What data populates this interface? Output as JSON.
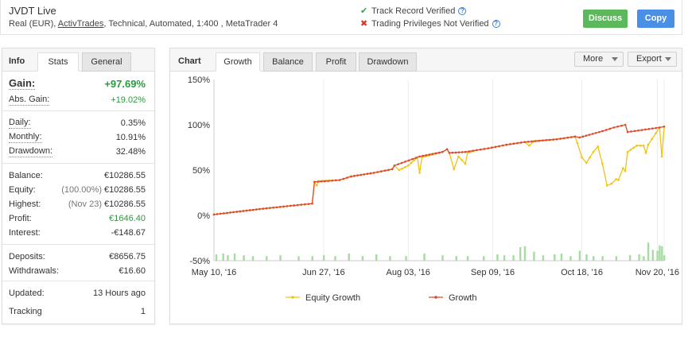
{
  "header": {
    "account_name": "JVDT Live",
    "account_prefix": "Real (EUR), ",
    "broker": "ActivTrades",
    "account_suffix": ", Technical, Automated, 1:400 , MetaTrader 4",
    "track_record": "Track Record Verified",
    "trading_privileges": "Trading Privileges Not Verified",
    "discuss_label": "Discuss",
    "copy_label": "Copy",
    "check_icon": "check-icon",
    "cross_icon": "cross-icon",
    "help_glyph": "?"
  },
  "left_tabs": {
    "info": "Info",
    "stats": "Stats",
    "general": "General"
  },
  "stats": {
    "gain": {
      "label": "Gain:",
      "value": "+97.69%"
    },
    "abs_gain": {
      "label": "Abs. Gain:",
      "value": "+19.02%"
    },
    "daily": {
      "label": "Daily:",
      "value": "0.35%"
    },
    "monthly": {
      "label": "Monthly:",
      "value": "10.91%"
    },
    "drawdown": {
      "label": "Drawdown:",
      "value": "32.48%"
    },
    "balance": {
      "label": "Balance:",
      "value": "€10286.55"
    },
    "equity": {
      "label": "Equity:",
      "prefix": "(100.00%)",
      "value": "€10286.55"
    },
    "highest": {
      "label": "Highest:",
      "prefix": "(Nov 23)",
      "value": "€10286.55"
    },
    "profit": {
      "label": "Profit:",
      "value": "€1646.40"
    },
    "interest": {
      "label": "Interest:",
      "value": "-€148.67"
    },
    "deposits": {
      "label": "Deposits:",
      "value": "€8656.75"
    },
    "withdrawals": {
      "label": "Withdrawals:",
      "value": "€16.60"
    },
    "updated": {
      "label": "Updated:",
      "value": "13 Hours ago"
    },
    "tracking": {
      "label": "Tracking",
      "value": "1"
    }
  },
  "chart_tabs": {
    "label": "Chart",
    "growth": "Growth",
    "balance": "Balance",
    "profit": "Profit",
    "drawdown": "Drawdown",
    "more": "More",
    "export": "Export"
  },
  "colors": {
    "growth": "#e04a2c",
    "equity": "#f2c313",
    "volume": "#a6dca0",
    "grid": "#ececec",
    "green_text": "#2a9a3c"
  },
  "chart_data": {
    "type": "line",
    "title": "",
    "xlabel": "",
    "ylabel": "",
    "ylim": [
      -50,
      150
    ],
    "y_ticks": [
      "150%",
      "100%",
      "50%",
      "0%",
      "-50%"
    ],
    "y_tick_values": [
      150,
      100,
      50,
      0,
      -50
    ],
    "x_ticks": [
      "May 10, '16",
      "Jun 27, '16",
      "Aug 03, '16",
      "Sep 09, '16",
      "Oct 18, '16",
      "Nov 20, '16"
    ],
    "x_tick_index": [
      0,
      48,
      85,
      122,
      161,
      194
    ],
    "x_count": 197,
    "legend": [
      "Equity Growth",
      "Growth"
    ],
    "legend_position": "bottom",
    "grid": "vertical",
    "series": [
      {
        "name": "Growth",
        "points": [
          [
            0,
            1
          ],
          [
            10,
            4
          ],
          [
            20,
            7
          ],
          [
            35,
            11
          ],
          [
            43,
            13
          ],
          [
            44,
            37
          ],
          [
            50,
            38
          ],
          [
            55,
            39
          ],
          [
            60,
            43
          ],
          [
            70,
            47
          ],
          [
            78,
            51
          ],
          [
            79,
            55
          ],
          [
            90,
            65
          ],
          [
            100,
            70
          ],
          [
            102,
            73
          ],
          [
            103,
            69
          ],
          [
            110,
            70
          ],
          [
            115,
            72
          ],
          [
            120,
            74
          ],
          [
            128,
            78
          ],
          [
            136,
            81
          ],
          [
            150,
            84
          ],
          [
            158,
            87
          ],
          [
            160,
            86
          ],
          [
            170,
            93
          ],
          [
            175,
            97
          ],
          [
            180,
            100
          ],
          [
            181,
            92
          ],
          [
            195,
            97
          ],
          [
            197,
            98
          ]
        ]
      },
      {
        "name": "Equity Growth",
        "points": [
          [
            0,
            1
          ],
          [
            10,
            4
          ],
          [
            20,
            7
          ],
          [
            35,
            11
          ],
          [
            43,
            13
          ],
          [
            44,
            37
          ],
          [
            45,
            33
          ],
          [
            46,
            38
          ],
          [
            55,
            39
          ],
          [
            60,
            43
          ],
          [
            70,
            47
          ],
          [
            78,
            51
          ],
          [
            79,
            55
          ],
          [
            81,
            50
          ],
          [
            85,
            55
          ],
          [
            89,
            64
          ],
          [
            90,
            47
          ],
          [
            91,
            64
          ],
          [
            100,
            70
          ],
          [
            102,
            73
          ],
          [
            103,
            69
          ],
          [
            105,
            51
          ],
          [
            107,
            65
          ],
          [
            110,
            57
          ],
          [
            111,
            69
          ],
          [
            115,
            72
          ],
          [
            120,
            74
          ],
          [
            128,
            78
          ],
          [
            136,
            81
          ],
          [
            138,
            77
          ],
          [
            140,
            82
          ],
          [
            150,
            84
          ],
          [
            158,
            87
          ],
          [
            159,
            80
          ],
          [
            161,
            64
          ],
          [
            163,
            58
          ],
          [
            166,
            70
          ],
          [
            168,
            76
          ],
          [
            170,
            57
          ],
          [
            172,
            33
          ],
          [
            174,
            35
          ],
          [
            176,
            40
          ],
          [
            177,
            39
          ],
          [
            179,
            52
          ],
          [
            180,
            49
          ],
          [
            181,
            70
          ],
          [
            185,
            77
          ],
          [
            188,
            77
          ],
          [
            189,
            69
          ],
          [
            190,
            78
          ],
          [
            195,
            97
          ],
          [
            196,
            65
          ],
          [
            197,
            98
          ]
        ]
      }
    ],
    "volume_bars": [
      [
        1,
        7
      ],
      [
        4,
        8
      ],
      [
        6,
        6
      ],
      [
        9,
        8
      ],
      [
        13,
        6
      ],
      [
        17,
        5
      ],
      [
        23,
        5
      ],
      [
        29,
        6
      ],
      [
        37,
        5
      ],
      [
        43,
        5
      ],
      [
        48,
        6
      ],
      [
        53,
        5
      ],
      [
        59,
        8
      ],
      [
        65,
        5
      ],
      [
        71,
        7
      ],
      [
        77,
        5
      ],
      [
        84,
        5
      ],
      [
        92,
        8
      ],
      [
        100,
        6
      ],
      [
        106,
        5
      ],
      [
        111,
        5
      ],
      [
        118,
        5
      ],
      [
        124,
        7
      ],
      [
        127,
        6
      ],
      [
        131,
        6
      ],
      [
        134,
        15
      ],
      [
        136,
        16
      ],
      [
        140,
        10
      ],
      [
        144,
        6
      ],
      [
        149,
        7
      ],
      [
        152,
        8
      ],
      [
        156,
        5
      ],
      [
        160,
        11
      ],
      [
        163,
        7
      ],
      [
        166,
        5
      ],
      [
        170,
        5
      ],
      [
        176,
        5
      ],
      [
        182,
        6
      ],
      [
        186,
        7
      ],
      [
        188,
        5
      ],
      [
        190,
        20
      ],
      [
        192,
        12
      ],
      [
        194,
        11
      ],
      [
        195,
        17
      ],
      [
        196,
        16
      ],
      [
        197,
        6
      ]
    ]
  }
}
